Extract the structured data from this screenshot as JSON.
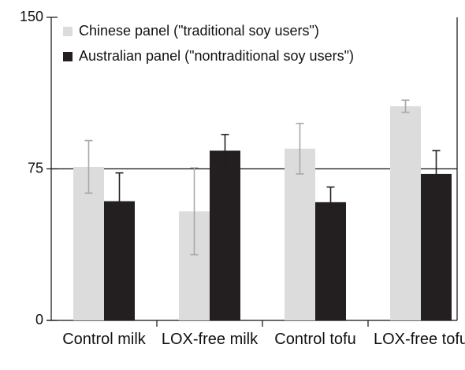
{
  "chart_data": {
    "type": "bar",
    "categories": [
      "Control milk",
      "LOX-free milk",
      "Control tofu",
      "LOX-free tofu"
    ],
    "series": [
      {
        "name": "Chinese panel (\"traditional soy users\")",
        "color": "#dcdcdc",
        "error_color": "#a8a8a8",
        "values": [
          76,
          54,
          85,
          106
        ],
        "errors": [
          13,
          21.5,
          12.5,
          3
        ]
      },
      {
        "name": "Australian panel (\"nontraditional soy users\")",
        "color": "#231f20",
        "error_color": "#231f20",
        "values": [
          59,
          84,
          58.5,
          72.5
        ],
        "errors": [
          14,
          8,
          7.5,
          11.5
        ]
      }
    ],
    "ylim": [
      0,
      150
    ],
    "yticks": [
      0,
      75,
      150
    ],
    "reference_line": 75,
    "legend": "upper left"
  }
}
